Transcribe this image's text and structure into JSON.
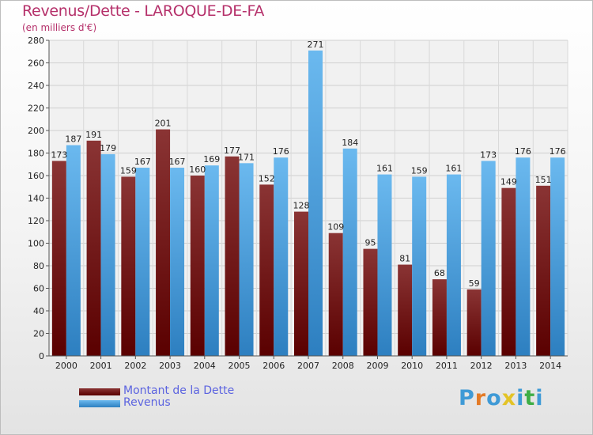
{
  "title": "Revenus/Dette - LAROQUE-DE-FA",
  "subtitle": "(en milliers d'€)",
  "logo": {
    "letters": [
      "P",
      "r",
      "o",
      "x",
      "i",
      "t",
      "i"
    ],
    "colors": [
      "#3f9ad6",
      "#e37a26",
      "#3f9ad6",
      "#e3c326",
      "#3f9ad6",
      "#3fae46",
      "#3f9ad6"
    ]
  },
  "colors": {
    "debt_top": "#8a3434",
    "debt_bottom": "#5a0000",
    "rev_top": "#6bb9ef",
    "rev_bottom": "#2d7fc0",
    "title": "#b5306a",
    "legend_text": "#5b63e0"
  },
  "chart_data": {
    "type": "bar",
    "categories": [
      "2000",
      "2001",
      "2002",
      "2003",
      "2004",
      "2005",
      "2006",
      "2007",
      "2008",
      "2009",
      "2010",
      "2011",
      "2012",
      "2013",
      "2014"
    ],
    "series": [
      {
        "name": "Montant de la Dette",
        "values": [
          173,
          191,
          159,
          201,
          160,
          177,
          152,
          128,
          109,
          95,
          81,
          68,
          59,
          149,
          151
        ],
        "labels": [
          "173",
          "191",
          "159",
          "201",
          "160",
          "177",
          "152",
          "128",
          "109",
          "95",
          "81",
          "68",
          "59",
          "149",
          "151"
        ]
      },
      {
        "name": "Revenus",
        "values": [
          187,
          179,
          167,
          167,
          169,
          171,
          176,
          271,
          184,
          161,
          159,
          161,
          173,
          176,
          176
        ],
        "labels": [
          "187",
          "179",
          "167",
          "167",
          "169",
          "171",
          "176",
          "271",
          "184",
          "161",
          "159",
          "161",
          "173",
          "176",
          "176"
        ]
      }
    ],
    "ylim": [
      0,
      280
    ],
    "yticks": [
      "0",
      "20",
      "40",
      "60",
      "80",
      "100",
      "120",
      "140",
      "160",
      "180",
      "200",
      "220",
      "240",
      "260",
      "280"
    ],
    "grid": true,
    "legend": "bottom-left"
  }
}
